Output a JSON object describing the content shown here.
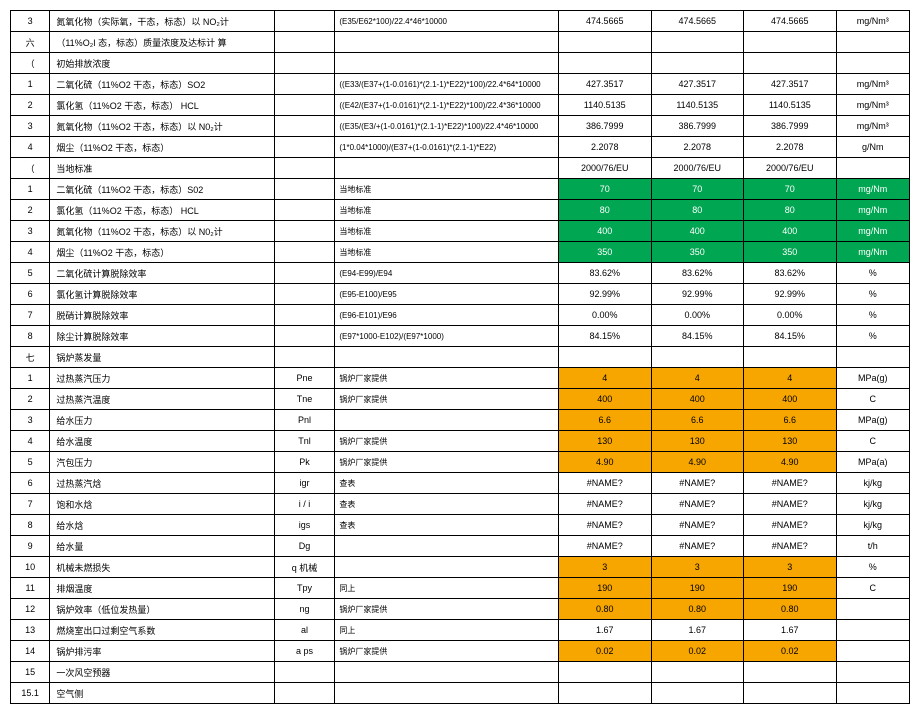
{
  "rows": [
    {
      "n": "3",
      "desc": "氮氧化物（实际氧，干态，标态）以 NO₂计",
      "sym": "",
      "formula": "(E35/E62*100)/22.4*46*10000",
      "v": "474.5665",
      "u": "mg/Nm³"
    },
    {
      "n": "六",
      "desc": "（11%O₂I 态，标态）质量浓度及达标计 算",
      "sym": "",
      "formula": "",
      "v": "",
      "u": ""
    },
    {
      "n": "（",
      "desc": "初始排放浓度",
      "sym": "",
      "formula": "",
      "v": "",
      "u": ""
    },
    {
      "n": "1",
      "desc": "二氧化硫（11%O2 干态，标态）SO2",
      "sym": "",
      "formula": "((E33/(E37+(1-0.0161)*(2.1-1)*E22)*100)/22.4*64*10000",
      "v": "427.3517",
      "u": "mg/Nm³"
    },
    {
      "n": "2",
      "desc": "氯化氢（11%O2 干态，标态） HCL",
      "sym": "",
      "formula": "((E42/(E37+(1-0.0161)*(2.1-1)*E22)*100)/22.4*36*10000",
      "v": "1140.5135",
      "u": "mg/Nm³"
    },
    {
      "n": "3",
      "desc": "氮氧化物（11%O2 干态，标态）以 N0₂计",
      "sym": "",
      "formula": "((E35/(E3/+(1-0.0161)*(2.1-1)*E22)*100)/22.4*46*10000",
      "v": "386.7999",
      "u": "mg/Nm³"
    },
    {
      "n": "4",
      "desc": "烟尘（11%O2 干态，标态）",
      "sym": "",
      "formula": "(1*0.04*1000)/(E37+(1-0.0161)*(2.1-1)*E22)",
      "v": "2.2078",
      "u": "g/Nm"
    },
    {
      "n": "（",
      "desc": "当地标准",
      "sym": "",
      "formula": "",
      "v": "2000/76/EU",
      "u": ""
    },
    {
      "n": "1",
      "desc": "二氧化硫（11%O2 干态，标态）S02",
      "sym": "",
      "formula": "当地标准",
      "v": "70",
      "u": "mg/Nm",
      "hl": "green"
    },
    {
      "n": "2",
      "desc": "氯化氢（11%O2 干态，标态） HCL",
      "sym": "",
      "formula": "当地标准",
      "v": "80",
      "u": "mg/Nm",
      "hl": "green"
    },
    {
      "n": "3",
      "desc": "氮氧化物（11%O2 干态，标态）以 N0₂计",
      "sym": "",
      "formula": "当地标准",
      "v": "400",
      "u": "mg/Nm",
      "hl": "green"
    },
    {
      "n": "4",
      "desc": "烟尘（11%O2 干态，标态）",
      "sym": "",
      "formula": "当地标准",
      "v": "350",
      "u": "mg/Nm",
      "hl": "green"
    },
    {
      "n": "5",
      "desc": "二氧化硫计算脱除效率",
      "sym": "",
      "formula": "(E94-E99)/E94",
      "v": "83.62%",
      "u": "%"
    },
    {
      "n": "6",
      "desc": "氯化氢计算脱除效率",
      "sym": "",
      "formula": "(E95-E100)/E95",
      "v": "92.99%",
      "u": "%"
    },
    {
      "n": "7",
      "desc": "脱硝计算脱除效率",
      "sym": "",
      "formula": "(E96-E101)/E96",
      "v": "0.00%",
      "u": "%"
    },
    {
      "n": "8",
      "desc": "除尘计算脱除效率",
      "sym": "",
      "formula": "(E97*1000-E102)/(E97*1000)",
      "v": "84.15%",
      "u": "%"
    },
    {
      "n": "七",
      "desc": "锅炉蒸发量",
      "sym": "",
      "formula": "",
      "v": "",
      "u": ""
    },
    {
      "n": "1",
      "desc": "过热蒸汽压力",
      "sym": "Pne",
      "formula": "锅炉厂家提供",
      "v": "4",
      "u": "MPa(g)",
      "hl": "orange"
    },
    {
      "n": "2",
      "desc": "过热蒸汽温度",
      "sym": "Tne",
      "formula": "锅炉厂家提供",
      "v": "400",
      "u": "C",
      "hl": "orange"
    },
    {
      "n": "3",
      "desc": "给水压力",
      "sym": "Pnl",
      "formula": "",
      "v": "6.6",
      "u": "MPa(g)",
      "hl": "orange"
    },
    {
      "n": "4",
      "desc": "给水温度",
      "sym": "Tnl",
      "formula": "锅炉厂家提供",
      "v": "130",
      "u": "C",
      "hl": "orange"
    },
    {
      "n": "5",
      "desc": "汽包压力",
      "sym": "Pk",
      "formula": "锅炉厂家提供",
      "v": "4.90",
      "u": "MPa(a)",
      "hl": "orange"
    },
    {
      "n": "6",
      "desc": "过热蒸汽焓",
      "sym": "igr",
      "formula": "查表",
      "v": "#NAME?",
      "u": "kj/kg"
    },
    {
      "n": "7",
      "desc": "饱和水焓",
      "sym": "i / i",
      "formula": "查表",
      "v": "#NAME?",
      "u": "kj/kg"
    },
    {
      "n": "8",
      "desc": "给水焓",
      "sym": "igs",
      "formula": "查表",
      "v": "#NAME?",
      "u": "kj/kg"
    },
    {
      "n": "9",
      "desc": "给水量",
      "sym": "Dg",
      "formula": "",
      "v": "#NAME?",
      "u": "t/h"
    },
    {
      "n": "10",
      "desc": "机械未燃损失",
      "sym": "q 机械",
      "formula": "",
      "v": "3",
      "u": "%",
      "hl": "orange"
    },
    {
      "n": "11",
      "desc": "排烟温度",
      "sym": "Tpy",
      "formula": "同上",
      "v": "190",
      "u": "C",
      "hl": "orange"
    },
    {
      "n": "12",
      "desc": "锅炉效率（低位发热量）",
      "sym": "ng",
      "formula": "锅炉厂家提供",
      "v": "0.80",
      "u": "",
      "hl": "orange"
    },
    {
      "n": "13",
      "desc": "燃烧室出口过剩空气系数",
      "sym": "al",
      "formula": "同上",
      "v": "1.67",
      "u": ""
    },
    {
      "n": "14",
      "desc": "锅炉排污率",
      "sym": "a ps",
      "formula": "锅炉厂家提供",
      "v": "0.02",
      "u": "",
      "hl": "orange"
    },
    {
      "n": "15",
      "desc": "一次风空预器",
      "sym": "",
      "formula": "",
      "v": "",
      "u": ""
    },
    {
      "n": "15.1",
      "desc": "空气侧",
      "sym": "",
      "formula": "",
      "v": "",
      "u": ""
    }
  ]
}
